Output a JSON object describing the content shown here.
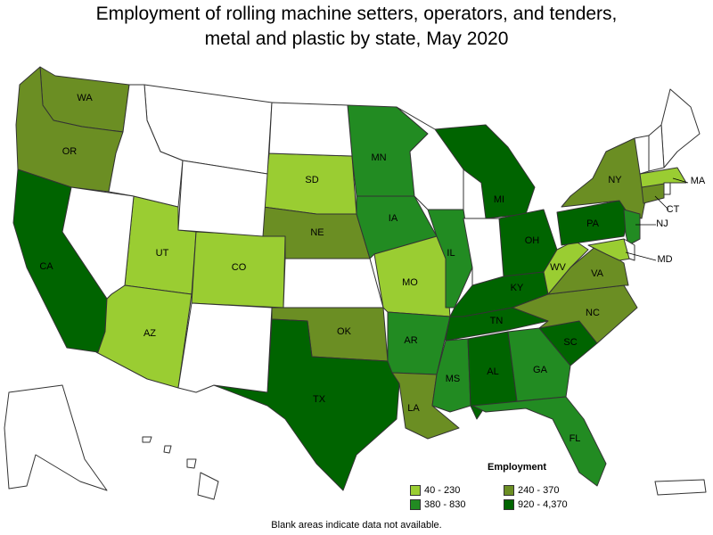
{
  "title_line1": "Employment of rolling machine setters, operators, and tenders,",
  "title_line2": "metal and plastic by state, May 2020",
  "legend": {
    "title": "Employment",
    "items": [
      {
        "label": "40 - 230",
        "color": "#9acd32"
      },
      {
        "label": "240 - 370",
        "color": "#6b8e23"
      },
      {
        "label": "380 - 830",
        "color": "#228b22"
      },
      {
        "label": "920 - 4,370",
        "color": "#006400"
      }
    ]
  },
  "footnote": "Blank areas indicate data not available.",
  "states": [
    {
      "abbr": "WA",
      "label": "WA",
      "bin": 1
    },
    {
      "abbr": "OR",
      "label": "OR",
      "bin": 1
    },
    {
      "abbr": "CA",
      "label": "CA",
      "bin": 3
    },
    {
      "abbr": "UT",
      "label": "UT",
      "bin": 0
    },
    {
      "abbr": "AZ",
      "label": "AZ",
      "bin": 0
    },
    {
      "abbr": "CO",
      "label": "CO",
      "bin": 0
    },
    {
      "abbr": "SD",
      "label": "SD",
      "bin": 0
    },
    {
      "abbr": "NE",
      "label": "NE",
      "bin": 1
    },
    {
      "abbr": "OK",
      "label": "OK",
      "bin": 1
    },
    {
      "abbr": "TX",
      "label": "TX",
      "bin": 3
    },
    {
      "abbr": "MN",
      "label": "MN",
      "bin": 2
    },
    {
      "abbr": "IA",
      "label": "IA",
      "bin": 2
    },
    {
      "abbr": "MO",
      "label": "MO",
      "bin": 0
    },
    {
      "abbr": "AR",
      "label": "AR",
      "bin": 2
    },
    {
      "abbr": "LA",
      "label": "LA",
      "bin": 1
    },
    {
      "abbr": "IL",
      "label": "IL",
      "bin": 2
    },
    {
      "abbr": "MI",
      "label": "MI",
      "bin": 3
    },
    {
      "abbr": "OH",
      "label": "OH",
      "bin": 3
    },
    {
      "abbr": "KY",
      "label": "KY",
      "bin": 3
    },
    {
      "abbr": "TN",
      "label": "TN",
      "bin": 3
    },
    {
      "abbr": "MS",
      "label": "MS",
      "bin": 2
    },
    {
      "abbr": "AL",
      "label": "AL",
      "bin": 3
    },
    {
      "abbr": "GA",
      "label": "GA",
      "bin": 2
    },
    {
      "abbr": "FL",
      "label": "FL",
      "bin": 2
    },
    {
      "abbr": "SC",
      "label": "SC",
      "bin": 3
    },
    {
      "abbr": "NC",
      "label": "NC",
      "bin": 1
    },
    {
      "abbr": "VA",
      "label": "VA",
      "bin": 1
    },
    {
      "abbr": "WV",
      "label": "WV",
      "bin": 0
    },
    {
      "abbr": "PA",
      "label": "PA",
      "bin": 3
    },
    {
      "abbr": "NY",
      "label": "NY",
      "bin": 1
    },
    {
      "abbr": "NJ",
      "label": "NJ",
      "bin": 2
    },
    {
      "abbr": "MD",
      "label": "MD",
      "bin": 0
    },
    {
      "abbr": "CT",
      "label": "CT",
      "bin": 1
    },
    {
      "abbr": "MA",
      "label": "MA",
      "bin": 0
    },
    {
      "abbr": "MT",
      "label": "",
      "bin": null
    },
    {
      "abbr": "ID",
      "label": "",
      "bin": null
    },
    {
      "abbr": "WY",
      "label": "",
      "bin": null
    },
    {
      "abbr": "NV",
      "label": "",
      "bin": null
    },
    {
      "abbr": "NM",
      "label": "",
      "bin": null
    },
    {
      "abbr": "ND",
      "label": "",
      "bin": null
    },
    {
      "abbr": "KS",
      "label": "",
      "bin": null
    },
    {
      "abbr": "WI",
      "label": "",
      "bin": null
    },
    {
      "abbr": "IN",
      "label": "",
      "bin": null
    },
    {
      "abbr": "ME",
      "label": "",
      "bin": null
    },
    {
      "abbr": "NH",
      "label": "",
      "bin": null
    },
    {
      "abbr": "VT",
      "label": "",
      "bin": null
    },
    {
      "abbr": "RI",
      "label": "",
      "bin": null
    },
    {
      "abbr": "DE",
      "label": "",
      "bin": null
    },
    {
      "abbr": "AK",
      "label": "",
      "bin": null
    },
    {
      "abbr": "HI",
      "label": "",
      "bin": null
    },
    {
      "abbr": "PR",
      "label": "",
      "bin": null
    }
  ]
}
